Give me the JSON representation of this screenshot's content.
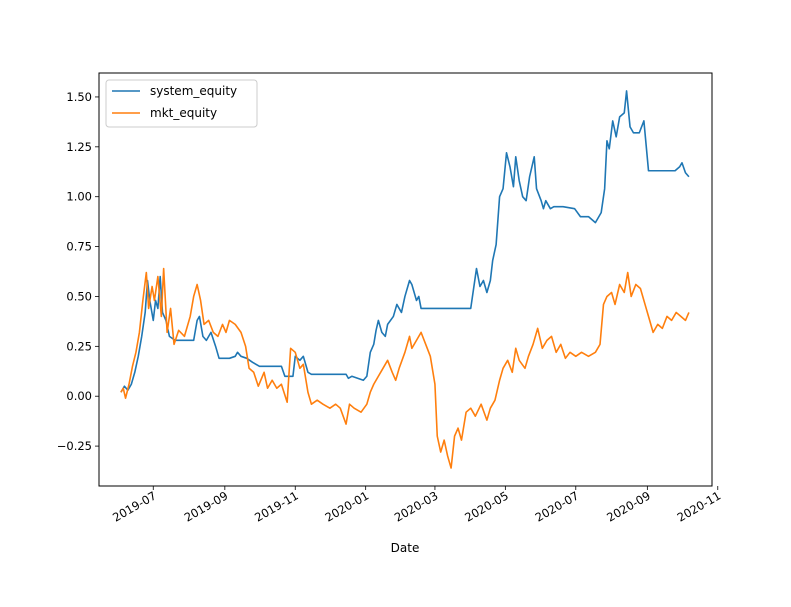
{
  "chart_data": {
    "type": "line",
    "title": "",
    "xlabel": "Date",
    "ylabel": "",
    "x_axis_type": "date",
    "xlim": [
      "2019-05-15",
      "2020-10-27"
    ],
    "ylim": [
      -0.45,
      1.62
    ],
    "x_ticks": [
      {
        "date": "2019-07-01",
        "label": "2019-07"
      },
      {
        "date": "2019-09-01",
        "label": "2019-09"
      },
      {
        "date": "2019-11-01",
        "label": "2019-11"
      },
      {
        "date": "2020-01-01",
        "label": "2020-01"
      },
      {
        "date": "2020-03-01",
        "label": "2020-03"
      },
      {
        "date": "2020-05-01",
        "label": "2020-05"
      },
      {
        "date": "2020-07-01",
        "label": "2020-07"
      },
      {
        "date": "2020-09-01",
        "label": "2020-09"
      },
      {
        "date": "2020-11-01",
        "label": "2020-11"
      }
    ],
    "y_ticks": [
      {
        "value": -0.25,
        "label": "−0.25"
      },
      {
        "value": 0.0,
        "label": "0.00"
      },
      {
        "value": 0.25,
        "label": "0.25"
      },
      {
        "value": 0.5,
        "label": "0.50"
      },
      {
        "value": 0.75,
        "label": "0.75"
      },
      {
        "value": 1.0,
        "label": "1.00"
      },
      {
        "value": 1.25,
        "label": "1.25"
      },
      {
        "value": 1.5,
        "label": "1.50"
      }
    ],
    "grid": false,
    "legend_position": "top-left",
    "series": [
      {
        "name": "system_equity",
        "color": "#1f77b4",
        "points": [
          [
            "2019-06-03",
            0.02
          ],
          [
            "2019-06-06",
            0.05
          ],
          [
            "2019-06-09",
            0.03
          ],
          [
            "2019-06-12",
            0.06
          ],
          [
            "2019-06-15",
            0.12
          ],
          [
            "2019-06-18",
            0.2
          ],
          [
            "2019-06-21",
            0.3
          ],
          [
            "2019-06-24",
            0.42
          ],
          [
            "2019-06-26",
            0.58
          ],
          [
            "2019-06-28",
            0.48
          ],
          [
            "2019-07-01",
            0.38
          ],
          [
            "2019-07-03",
            0.48
          ],
          [
            "2019-07-05",
            0.44
          ],
          [
            "2019-07-07",
            0.6
          ],
          [
            "2019-07-09",
            0.42
          ],
          [
            "2019-07-12",
            0.38
          ],
          [
            "2019-07-15",
            0.3
          ],
          [
            "2019-07-20",
            0.28
          ],
          [
            "2019-07-30",
            0.28
          ],
          [
            "2019-08-05",
            0.28
          ],
          [
            "2019-08-08",
            0.38
          ],
          [
            "2019-08-10",
            0.4
          ],
          [
            "2019-08-13",
            0.3
          ],
          [
            "2019-08-16",
            0.28
          ],
          [
            "2019-08-20",
            0.32
          ],
          [
            "2019-08-24",
            0.25
          ],
          [
            "2019-08-27",
            0.19
          ],
          [
            "2019-09-05",
            0.19
          ],
          [
            "2019-09-10",
            0.2
          ],
          [
            "2019-09-12",
            0.22
          ],
          [
            "2019-09-15",
            0.2
          ],
          [
            "2019-09-20",
            0.19
          ],
          [
            "2019-09-25",
            0.17
          ],
          [
            "2019-10-01",
            0.15
          ],
          [
            "2019-10-10",
            0.15
          ],
          [
            "2019-10-20",
            0.15
          ],
          [
            "2019-10-23",
            0.1
          ],
          [
            "2019-10-30",
            0.1
          ],
          [
            "2019-11-01",
            0.2
          ],
          [
            "2019-11-05",
            0.18
          ],
          [
            "2019-11-08",
            0.2
          ],
          [
            "2019-11-12",
            0.12
          ],
          [
            "2019-11-15",
            0.11
          ],
          [
            "2019-12-01",
            0.11
          ],
          [
            "2019-12-15",
            0.11
          ],
          [
            "2019-12-17",
            0.09
          ],
          [
            "2019-12-20",
            0.1
          ],
          [
            "2019-12-25",
            0.09
          ],
          [
            "2019-12-30",
            0.08
          ],
          [
            "2020-01-02",
            0.1
          ],
          [
            "2020-01-05",
            0.22
          ],
          [
            "2020-01-08",
            0.26
          ],
          [
            "2020-01-10",
            0.33
          ],
          [
            "2020-01-12",
            0.38
          ],
          [
            "2020-01-15",
            0.32
          ],
          [
            "2020-01-18",
            0.3
          ],
          [
            "2020-01-20",
            0.36
          ],
          [
            "2020-01-25",
            0.4
          ],
          [
            "2020-01-28",
            0.46
          ],
          [
            "2020-02-01",
            0.42
          ],
          [
            "2020-02-04",
            0.5
          ],
          [
            "2020-02-08",
            0.58
          ],
          [
            "2020-02-10",
            0.56
          ],
          [
            "2020-02-14",
            0.48
          ],
          [
            "2020-02-16",
            0.5
          ],
          [
            "2020-02-18",
            0.44
          ],
          [
            "2020-02-22",
            0.44
          ],
          [
            "2020-03-01",
            0.44
          ],
          [
            "2020-03-20",
            0.44
          ],
          [
            "2020-04-01",
            0.44
          ],
          [
            "2020-04-04",
            0.56
          ],
          [
            "2020-04-06",
            0.64
          ],
          [
            "2020-04-09",
            0.55
          ],
          [
            "2020-04-12",
            0.58
          ],
          [
            "2020-04-15",
            0.52
          ],
          [
            "2020-04-18",
            0.58
          ],
          [
            "2020-04-20",
            0.68
          ],
          [
            "2020-04-23",
            0.76
          ],
          [
            "2020-04-26",
            1.0
          ],
          [
            "2020-04-29",
            1.04
          ],
          [
            "2020-05-02",
            1.22
          ],
          [
            "2020-05-05",
            1.15
          ],
          [
            "2020-05-08",
            1.05
          ],
          [
            "2020-05-10",
            1.2
          ],
          [
            "2020-05-13",
            1.08
          ],
          [
            "2020-05-16",
            1.0
          ],
          [
            "2020-05-19",
            0.98
          ],
          [
            "2020-05-22",
            1.1
          ],
          [
            "2020-05-26",
            1.2
          ],
          [
            "2020-05-28",
            1.04
          ],
          [
            "2020-06-01",
            0.98
          ],
          [
            "2020-06-03",
            0.94
          ],
          [
            "2020-06-05",
            0.98
          ],
          [
            "2020-06-09",
            0.94
          ],
          [
            "2020-06-12",
            0.95
          ],
          [
            "2020-06-20",
            0.95
          ],
          [
            "2020-06-30",
            0.94
          ],
          [
            "2020-07-05",
            0.9
          ],
          [
            "2020-07-12",
            0.9
          ],
          [
            "2020-07-18",
            0.87
          ],
          [
            "2020-07-23",
            0.92
          ],
          [
            "2020-07-26",
            1.04
          ],
          [
            "2020-07-28",
            1.28
          ],
          [
            "2020-07-30",
            1.24
          ],
          [
            "2020-08-02",
            1.38
          ],
          [
            "2020-08-05",
            1.3
          ],
          [
            "2020-08-08",
            1.4
          ],
          [
            "2020-08-12",
            1.42
          ],
          [
            "2020-08-14",
            1.53
          ],
          [
            "2020-08-17",
            1.35
          ],
          [
            "2020-08-20",
            1.32
          ],
          [
            "2020-08-25",
            1.32
          ],
          [
            "2020-08-29",
            1.38
          ],
          [
            "2020-09-02",
            1.13
          ],
          [
            "2020-09-15",
            1.13
          ],
          [
            "2020-09-25",
            1.13
          ],
          [
            "2020-09-29",
            1.15
          ],
          [
            "2020-10-01",
            1.17
          ],
          [
            "2020-10-04",
            1.12
          ],
          [
            "2020-10-07",
            1.1
          ]
        ]
      },
      {
        "name": "mkt_equity",
        "color": "#ff7f0e",
        "points": [
          [
            "2019-06-03",
            0.02
          ],
          [
            "2019-06-05",
            0.04
          ],
          [
            "2019-06-07",
            -0.01
          ],
          [
            "2019-06-10",
            0.06
          ],
          [
            "2019-06-13",
            0.15
          ],
          [
            "2019-06-16",
            0.22
          ],
          [
            "2019-06-19",
            0.32
          ],
          [
            "2019-06-22",
            0.48
          ],
          [
            "2019-06-25",
            0.62
          ],
          [
            "2019-06-27",
            0.44
          ],
          [
            "2019-06-30",
            0.55
          ],
          [
            "2019-07-02",
            0.48
          ],
          [
            "2019-07-05",
            0.6
          ],
          [
            "2019-07-08",
            0.4
          ],
          [
            "2019-07-10",
            0.64
          ],
          [
            "2019-07-13",
            0.32
          ],
          [
            "2019-07-16",
            0.44
          ],
          [
            "2019-07-19",
            0.26
          ],
          [
            "2019-07-23",
            0.33
          ],
          [
            "2019-07-28",
            0.3
          ],
          [
            "2019-08-02",
            0.4
          ],
          [
            "2019-08-05",
            0.5
          ],
          [
            "2019-08-08",
            0.56
          ],
          [
            "2019-08-11",
            0.48
          ],
          [
            "2019-08-14",
            0.36
          ],
          [
            "2019-08-18",
            0.38
          ],
          [
            "2019-08-22",
            0.32
          ],
          [
            "2019-08-26",
            0.3
          ],
          [
            "2019-08-30",
            0.36
          ],
          [
            "2019-09-02",
            0.32
          ],
          [
            "2019-09-05",
            0.38
          ],
          [
            "2019-09-10",
            0.36
          ],
          [
            "2019-09-15",
            0.32
          ],
          [
            "2019-09-19",
            0.25
          ],
          [
            "2019-09-22",
            0.14
          ],
          [
            "2019-09-26",
            0.12
          ],
          [
            "2019-09-30",
            0.05
          ],
          [
            "2019-10-05",
            0.12
          ],
          [
            "2019-10-08",
            0.04
          ],
          [
            "2019-10-12",
            0.08
          ],
          [
            "2019-10-16",
            0.04
          ],
          [
            "2019-10-20",
            0.06
          ],
          [
            "2019-10-25",
            -0.03
          ],
          [
            "2019-10-28",
            0.24
          ],
          [
            "2019-11-01",
            0.22
          ],
          [
            "2019-11-05",
            0.14
          ],
          [
            "2019-11-08",
            0.16
          ],
          [
            "2019-11-12",
            0.02
          ],
          [
            "2019-11-15",
            -0.04
          ],
          [
            "2019-11-20",
            -0.02
          ],
          [
            "2019-11-25",
            -0.04
          ],
          [
            "2019-12-01",
            -0.06
          ],
          [
            "2019-12-06",
            -0.04
          ],
          [
            "2019-12-10",
            -0.06
          ],
          [
            "2019-12-15",
            -0.14
          ],
          [
            "2019-12-18",
            -0.04
          ],
          [
            "2019-12-22",
            -0.06
          ],
          [
            "2019-12-28",
            -0.08
          ],
          [
            "2020-01-02",
            -0.04
          ],
          [
            "2020-01-05",
            0.02
          ],
          [
            "2020-01-08",
            0.06
          ],
          [
            "2020-01-12",
            0.1
          ],
          [
            "2020-01-16",
            0.14
          ],
          [
            "2020-01-20",
            0.18
          ],
          [
            "2020-01-24",
            0.12
          ],
          [
            "2020-01-27",
            0.08
          ],
          [
            "2020-01-30",
            0.14
          ],
          [
            "2020-02-04",
            0.22
          ],
          [
            "2020-02-08",
            0.3
          ],
          [
            "2020-02-10",
            0.24
          ],
          [
            "2020-02-14",
            0.28
          ],
          [
            "2020-02-18",
            0.32
          ],
          [
            "2020-02-22",
            0.26
          ],
          [
            "2020-02-26",
            0.2
          ],
          [
            "2020-03-01",
            0.06
          ],
          [
            "2020-03-03",
            -0.2
          ],
          [
            "2020-03-06",
            -0.28
          ],
          [
            "2020-03-09",
            -0.22
          ],
          [
            "2020-03-12",
            -0.3
          ],
          [
            "2020-03-15",
            -0.36
          ],
          [
            "2020-03-18",
            -0.2
          ],
          [
            "2020-03-21",
            -0.16
          ],
          [
            "2020-03-24",
            -0.22
          ],
          [
            "2020-03-28",
            -0.08
          ],
          [
            "2020-04-01",
            -0.06
          ],
          [
            "2020-04-05",
            -0.1
          ],
          [
            "2020-04-10",
            -0.04
          ],
          [
            "2020-04-15",
            -0.12
          ],
          [
            "2020-04-18",
            -0.06
          ],
          [
            "2020-04-22",
            -0.02
          ],
          [
            "2020-04-26",
            0.08
          ],
          [
            "2020-04-29",
            0.14
          ],
          [
            "2020-05-03",
            0.18
          ],
          [
            "2020-05-07",
            0.12
          ],
          [
            "2020-05-10",
            0.24
          ],
          [
            "2020-05-13",
            0.18
          ],
          [
            "2020-05-18",
            0.14
          ],
          [
            "2020-05-21",
            0.2
          ],
          [
            "2020-05-25",
            0.26
          ],
          [
            "2020-05-29",
            0.34
          ],
          [
            "2020-06-02",
            0.24
          ],
          [
            "2020-06-06",
            0.28
          ],
          [
            "2020-06-10",
            0.3
          ],
          [
            "2020-06-14",
            0.22
          ],
          [
            "2020-06-18",
            0.26
          ],
          [
            "2020-06-22",
            0.19
          ],
          [
            "2020-06-26",
            0.22
          ],
          [
            "2020-07-01",
            0.2
          ],
          [
            "2020-07-06",
            0.22
          ],
          [
            "2020-07-12",
            0.2
          ],
          [
            "2020-07-18",
            0.22
          ],
          [
            "2020-07-22",
            0.26
          ],
          [
            "2020-07-25",
            0.46
          ],
          [
            "2020-07-28",
            0.5
          ],
          [
            "2020-08-01",
            0.52
          ],
          [
            "2020-08-04",
            0.46
          ],
          [
            "2020-08-08",
            0.56
          ],
          [
            "2020-08-12",
            0.52
          ],
          [
            "2020-08-15",
            0.62
          ],
          [
            "2020-08-18",
            0.5
          ],
          [
            "2020-08-22",
            0.56
          ],
          [
            "2020-08-26",
            0.54
          ],
          [
            "2020-08-30",
            0.46
          ],
          [
            "2020-09-03",
            0.38
          ],
          [
            "2020-09-06",
            0.32
          ],
          [
            "2020-09-10",
            0.36
          ],
          [
            "2020-09-14",
            0.34
          ],
          [
            "2020-09-18",
            0.4
          ],
          [
            "2020-09-22",
            0.38
          ],
          [
            "2020-09-26",
            0.42
          ],
          [
            "2020-09-30",
            0.4
          ],
          [
            "2020-10-04",
            0.38
          ],
          [
            "2020-10-07",
            0.42
          ]
        ]
      }
    ]
  }
}
